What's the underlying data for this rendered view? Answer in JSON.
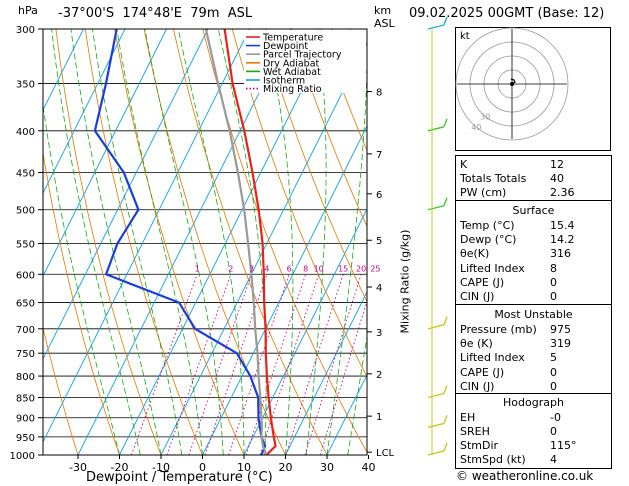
{
  "header": {
    "location": "-37°00'S  174°48'E  79m  ASL",
    "datetime": "09.02.2025  00GMT  (Base: 12)",
    "pressure_unit": "hPa",
    "km_label": "km",
    "asl_label": "ASL"
  },
  "legend": [
    {
      "label": "Temperature",
      "color": "#e8221b",
      "style": "solid"
    },
    {
      "label": "Dewpoint",
      "color": "#1a3fd6",
      "style": "solid"
    },
    {
      "label": "Parcel Trajectory",
      "color": "#999999",
      "style": "solid"
    },
    {
      "label": "Dry Adiabat",
      "color": "#e07800",
      "style": "solid"
    },
    {
      "label": "Wet Adiabat",
      "color": "#16a616",
      "style": "solid"
    },
    {
      "label": "Isotherm",
      "color": "#10a0e0",
      "style": "solid"
    },
    {
      "label": "Mixing Ratio",
      "color": "#c0008c",
      "style": "dotted"
    }
  ],
  "chart_data": {
    "type": "skew-t",
    "xlabel": "Dewpoint / Temperature (°C)",
    "y_right_label": "Mixing Ratio (g/kg)",
    "pressure_levels": [
      300,
      350,
      400,
      450,
      500,
      550,
      600,
      650,
      700,
      750,
      800,
      850,
      900,
      950,
      1000
    ],
    "temp_ticks": [
      -30,
      -20,
      -10,
      0,
      10,
      20,
      30,
      40
    ],
    "km_ticks": [
      {
        "label": "8",
        "p": 358
      },
      {
        "label": "7",
        "p": 427
      },
      {
        "label": "6",
        "p": 478
      },
      {
        "label": "5",
        "p": 545
      },
      {
        "label": "4",
        "p": 622
      },
      {
        "label": "3",
        "p": 706
      },
      {
        "label": "2",
        "p": 795
      },
      {
        "label": "1",
        "p": 896
      },
      {
        "label": "LCL",
        "p": 992
      }
    ],
    "mixing_ratio_labels": [
      "1",
      "2",
      "3",
      "4",
      "6",
      "8",
      "10",
      "15",
      "20",
      "25"
    ],
    "mixing_ratio_values": [
      1,
      2,
      3,
      4,
      6,
      8,
      10,
      15,
      20,
      25
    ],
    "series": [
      {
        "name": "Temperature",
        "color": "#e8221b",
        "points": [
          [
            1000,
            15.4
          ],
          [
            975,
            16.5
          ],
          [
            950,
            15
          ],
          [
            925,
            13.5
          ],
          [
            900,
            12
          ],
          [
            850,
            9
          ],
          [
            800,
            6
          ],
          [
            750,
            3
          ],
          [
            700,
            0
          ],
          [
            650,
            -3.5
          ],
          [
            600,
            -7
          ],
          [
            550,
            -11
          ],
          [
            500,
            -16
          ],
          [
            450,
            -22
          ],
          [
            400,
            -29
          ],
          [
            350,
            -37.5
          ],
          [
            300,
            -46
          ]
        ]
      },
      {
        "name": "Dewpoint",
        "color": "#1a3fd6",
        "points": [
          [
            1000,
            14.2
          ],
          [
            975,
            14
          ],
          [
            950,
            12
          ],
          [
            925,
            10.5
          ],
          [
            900,
            9
          ],
          [
            850,
            6.5
          ],
          [
            800,
            2
          ],
          [
            750,
            -4
          ],
          [
            700,
            -17
          ],
          [
            650,
            -24
          ],
          [
            600,
            -45
          ],
          [
            550,
            -46
          ],
          [
            500,
            -45
          ],
          [
            450,
            -53
          ],
          [
            400,
            -65
          ],
          [
            350,
            -68
          ],
          [
            300,
            -72
          ]
        ]
      },
      {
        "name": "Parcel Trajectory",
        "color": "#999999",
        "points": [
          [
            1000,
            15.4
          ],
          [
            975,
            13.5
          ],
          [
            950,
            12
          ],
          [
            925,
            11
          ],
          [
            900,
            9.7
          ],
          [
            850,
            7
          ],
          [
            800,
            4
          ],
          [
            750,
            1
          ],
          [
            700,
            -2.5
          ],
          [
            650,
            -6
          ],
          [
            600,
            -10
          ],
          [
            550,
            -14.5
          ],
          [
            500,
            -19.5
          ],
          [
            450,
            -25.5
          ],
          [
            400,
            -32.5
          ],
          [
            350,
            -41
          ],
          [
            300,
            -50.5
          ]
        ]
      }
    ],
    "wind_barbs": [
      {
        "p": 300
      },
      {
        "p": 400
      },
      {
        "p": 500
      },
      {
        "p": 700
      },
      {
        "p": 850
      },
      {
        "p": 925
      },
      {
        "p": 1000
      }
    ]
  },
  "hodograph": {
    "label": "kt",
    "rings": [
      "10",
      "20",
      "30",
      "40"
    ]
  },
  "indices": [
    {
      "key": "K",
      "value": "12"
    },
    {
      "key": "Totals Totals",
      "value": "40"
    },
    {
      "key": "PW (cm)",
      "value": "2.36"
    }
  ],
  "surface": {
    "title": "Surface",
    "rows": [
      {
        "key": "Temp (°C)",
        "value": "15.4"
      },
      {
        "key": "Dewp (°C)",
        "value": "14.2"
      },
      {
        "key": "θe(K)",
        "value": "316"
      },
      {
        "key": "Lifted Index",
        "value": "8"
      },
      {
        "key": "CAPE (J)",
        "value": "0"
      },
      {
        "key": "CIN (J)",
        "value": "0"
      }
    ]
  },
  "most_unstable": {
    "title": "Most Unstable",
    "rows": [
      {
        "key": "Pressure (mb)",
        "value": "975"
      },
      {
        "key": "θe (K)",
        "value": "319"
      },
      {
        "key": "Lifted Index",
        "value": "5"
      },
      {
        "key": "CAPE (J)",
        "value": "0"
      },
      {
        "key": "CIN (J)",
        "value": "0"
      }
    ]
  },
  "hodograph_table": {
    "title": "Hodograph",
    "rows": [
      {
        "key": "EH",
        "value": "-0"
      },
      {
        "key": "SREH",
        "value": "0"
      },
      {
        "key": "StmDir",
        "value": "115°"
      },
      {
        "key": "StmSpd (kt)",
        "value": "4"
      }
    ]
  },
  "footer": "© weatheronline.co.uk"
}
